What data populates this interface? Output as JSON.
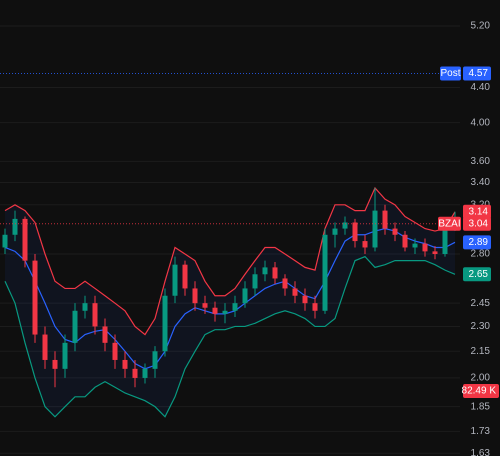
{
  "chart_data": {
    "type": "candlestick",
    "log_scale": true,
    "grid": true,
    "ylim": [
      1.618,
      5.58
    ],
    "yticks": [
      {
        "value": 5.2,
        "label": "5.20"
      },
      {
        "value": 4.4,
        "label": "4.40"
      },
      {
        "value": 4.0,
        "label": "4.00"
      },
      {
        "value": 3.6,
        "label": "3.60"
      },
      {
        "value": 3.4,
        "label": "3.40"
      },
      {
        "value": 3.2,
        "label": "3.20"
      },
      {
        "value": 2.8,
        "label": "2.80"
      },
      2.45,
      {
        "value": 2.3,
        "label": "2.30"
      },
      2.15,
      {
        "value": 2.0,
        "label": "2.00"
      },
      1.85,
      1.73,
      1.63
    ],
    "up_color": "#089981",
    "down_color": "#f23645",
    "open": [
      2.85,
      2.95,
      3.08,
      2.75,
      2.25,
      2.1,
      2.05,
      2.2,
      2.4,
      2.45,
      2.3,
      2.2,
      2.1,
      2.05,
      2.0,
      2.05,
      2.15,
      2.5,
      2.72,
      2.55,
      2.45,
      2.42,
      2.38,
      2.4,
      2.45,
      2.55,
      2.65,
      2.7,
      2.62,
      2.55,
      2.5,
      2.45,
      2.4,
      2.95,
      3.0,
      3.05,
      2.9,
      2.85,
      3.15,
      3.0,
      2.95,
      2.85,
      2.88,
      2.82,
      2.8,
      3.04
    ],
    "high": [
      3.0,
      3.15,
      3.1,
      2.8,
      2.3,
      2.15,
      2.25,
      2.45,
      2.5,
      2.5,
      2.35,
      2.25,
      2.15,
      2.1,
      2.08,
      2.18,
      2.55,
      2.78,
      2.75,
      2.6,
      2.5,
      2.46,
      2.45,
      2.5,
      2.6,
      2.7,
      2.75,
      2.74,
      2.65,
      2.6,
      2.55,
      2.5,
      3.0,
      3.05,
      3.1,
      3.08,
      2.95,
      3.35,
      3.2,
      3.05,
      2.98,
      2.92,
      2.92,
      2.86,
      3.08,
      3.14
    ],
    "low": [
      2.8,
      2.9,
      2.7,
      2.2,
      2.05,
      1.95,
      2.0,
      2.15,
      2.35,
      2.25,
      2.15,
      2.05,
      2.0,
      1.95,
      1.97,
      2.0,
      2.12,
      2.45,
      2.5,
      2.4,
      2.38,
      2.33,
      2.32,
      2.36,
      2.42,
      2.5,
      2.6,
      2.58,
      2.5,
      2.45,
      2.4,
      2.35,
      2.38,
      2.85,
      2.95,
      2.85,
      2.8,
      2.82,
      2.95,
      2.9,
      2.82,
      2.8,
      2.78,
      2.76,
      2.78,
      2.98
    ],
    "close": [
      2.95,
      3.08,
      2.75,
      2.25,
      2.1,
      2.05,
      2.2,
      2.4,
      2.45,
      2.3,
      2.2,
      2.1,
      2.05,
      2.0,
      2.05,
      2.15,
      2.5,
      2.72,
      2.55,
      2.45,
      2.42,
      2.38,
      2.4,
      2.45,
      2.55,
      2.65,
      2.7,
      2.62,
      2.55,
      2.5,
      2.45,
      2.4,
      2.95,
      3.0,
      3.05,
      2.9,
      2.85,
      3.15,
      3.0,
      2.95,
      2.85,
      2.88,
      2.82,
      2.8,
      3.04,
      3.04
    ],
    "bands": [
      {
        "color": "#f23645",
        "values": [
          3.15,
          3.2,
          3.15,
          3.05,
          2.8,
          2.6,
          2.55,
          2.55,
          2.6,
          2.55,
          2.5,
          2.45,
          2.4,
          2.3,
          2.25,
          2.35,
          2.6,
          2.85,
          2.8,
          2.75,
          2.6,
          2.5,
          2.5,
          2.55,
          2.65,
          2.75,
          2.85,
          2.85,
          2.8,
          2.75,
          2.7,
          2.68,
          3.0,
          3.2,
          3.2,
          3.15,
          3.15,
          3.35,
          3.25,
          3.2,
          3.1,
          3.05,
          3.0,
          2.98,
          3.0,
          3.14
        ]
      },
      {
        "color": "#2962ff",
        "values": [
          2.85,
          2.82,
          2.75,
          2.6,
          2.45,
          2.3,
          2.22,
          2.2,
          2.25,
          2.27,
          2.28,
          2.22,
          2.15,
          2.08,
          2.05,
          2.07,
          2.15,
          2.3,
          2.38,
          2.42,
          2.4,
          2.38,
          2.38,
          2.4,
          2.45,
          2.5,
          2.55,
          2.58,
          2.6,
          2.55,
          2.5,
          2.48,
          2.6,
          2.75,
          2.9,
          2.95,
          2.95,
          2.98,
          3.0,
          2.98,
          2.93,
          2.9,
          2.88,
          2.85,
          2.85,
          2.89
        ]
      },
      {
        "color": "#089981",
        "values": [
          2.6,
          2.45,
          2.2,
          2.0,
          1.85,
          1.8,
          1.85,
          1.9,
          1.9,
          1.95,
          1.98,
          1.95,
          1.92,
          1.9,
          1.88,
          1.85,
          1.8,
          1.9,
          2.05,
          2.15,
          2.25,
          2.28,
          2.28,
          2.3,
          2.3,
          2.32,
          2.35,
          2.38,
          2.4,
          2.38,
          2.35,
          2.3,
          2.3,
          2.35,
          2.55,
          2.75,
          2.78,
          2.7,
          2.72,
          2.75,
          2.75,
          2.75,
          2.75,
          2.72,
          2.68,
          2.65
        ]
      }
    ],
    "post": {
      "label": "Post",
      "value": 4.57,
      "color": "#2962ff"
    },
    "price": {
      "label": "BZAI",
      "value": 3.04,
      "color": "#f23645"
    },
    "volume": {
      "value": 82490,
      "label": "82.49 K",
      "color": "#f23645"
    }
  }
}
